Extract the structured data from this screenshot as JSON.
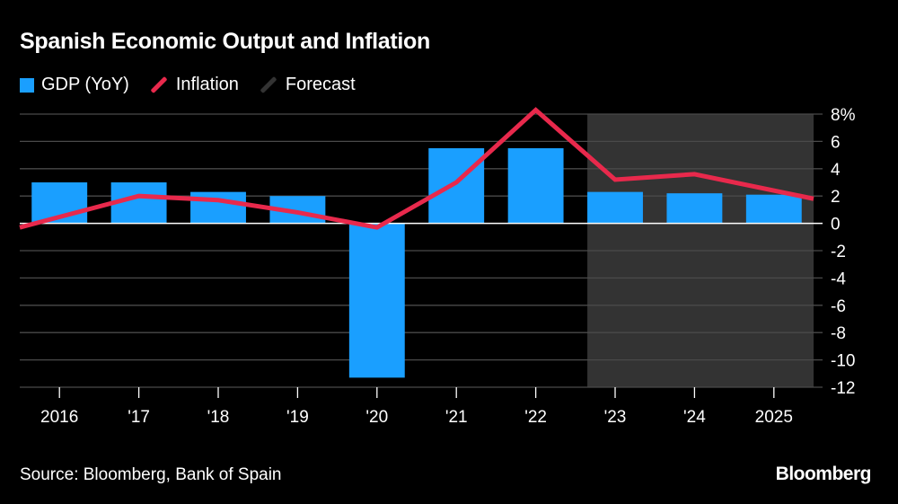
{
  "title": "Spanish Economic Output and Inflation",
  "legend": {
    "gdp": "GDP (YoY)",
    "inflation": "Inflation",
    "forecast": "Forecast"
  },
  "colors": {
    "background": "#000000",
    "gdp": "#1a9fff",
    "inflation": "#e8294c",
    "forecast": "#333333",
    "grid": "#4a4a4a",
    "zero": "#ffffff",
    "text": "#ffffff"
  },
  "chart_data": {
    "type": "bar",
    "title": "Spanish Economic Output and Inflation",
    "categories": [
      "2016",
      "'17",
      "'18",
      "'19",
      "'20",
      "'21",
      "'22",
      "'23",
      "'24",
      "2025"
    ],
    "series": [
      {
        "name": "GDP (YoY)",
        "type": "bar",
        "values": [
          3.0,
          3.0,
          2.3,
          2.0,
          -11.3,
          5.5,
          5.5,
          2.3,
          2.2,
          2.1
        ]
      },
      {
        "name": "Inflation",
        "type": "line",
        "values": [
          -0.3,
          2.0,
          1.7,
          0.8,
          -0.3,
          3.0,
          8.3,
          3.2,
          3.6,
          1.8
        ]
      }
    ],
    "forecast_categories": [
      "'23",
      "'24",
      "2025"
    ],
    "ylim": [
      -12,
      8
    ],
    "yticks": [
      8,
      6,
      4,
      2,
      0,
      -2,
      -4,
      -6,
      -8,
      -10,
      -12
    ],
    "ytick_labels": [
      "8%",
      "6",
      "4",
      "2",
      "0",
      "-2",
      "-4",
      "-6",
      "-8",
      "-10",
      "-12"
    ],
    "xlabel": "",
    "ylabel": "",
    "grid": true,
    "y_axis_side": "right"
  },
  "footer": {
    "source": "Source: Bloomberg, Bank of Spain",
    "brand": "Bloomberg"
  }
}
